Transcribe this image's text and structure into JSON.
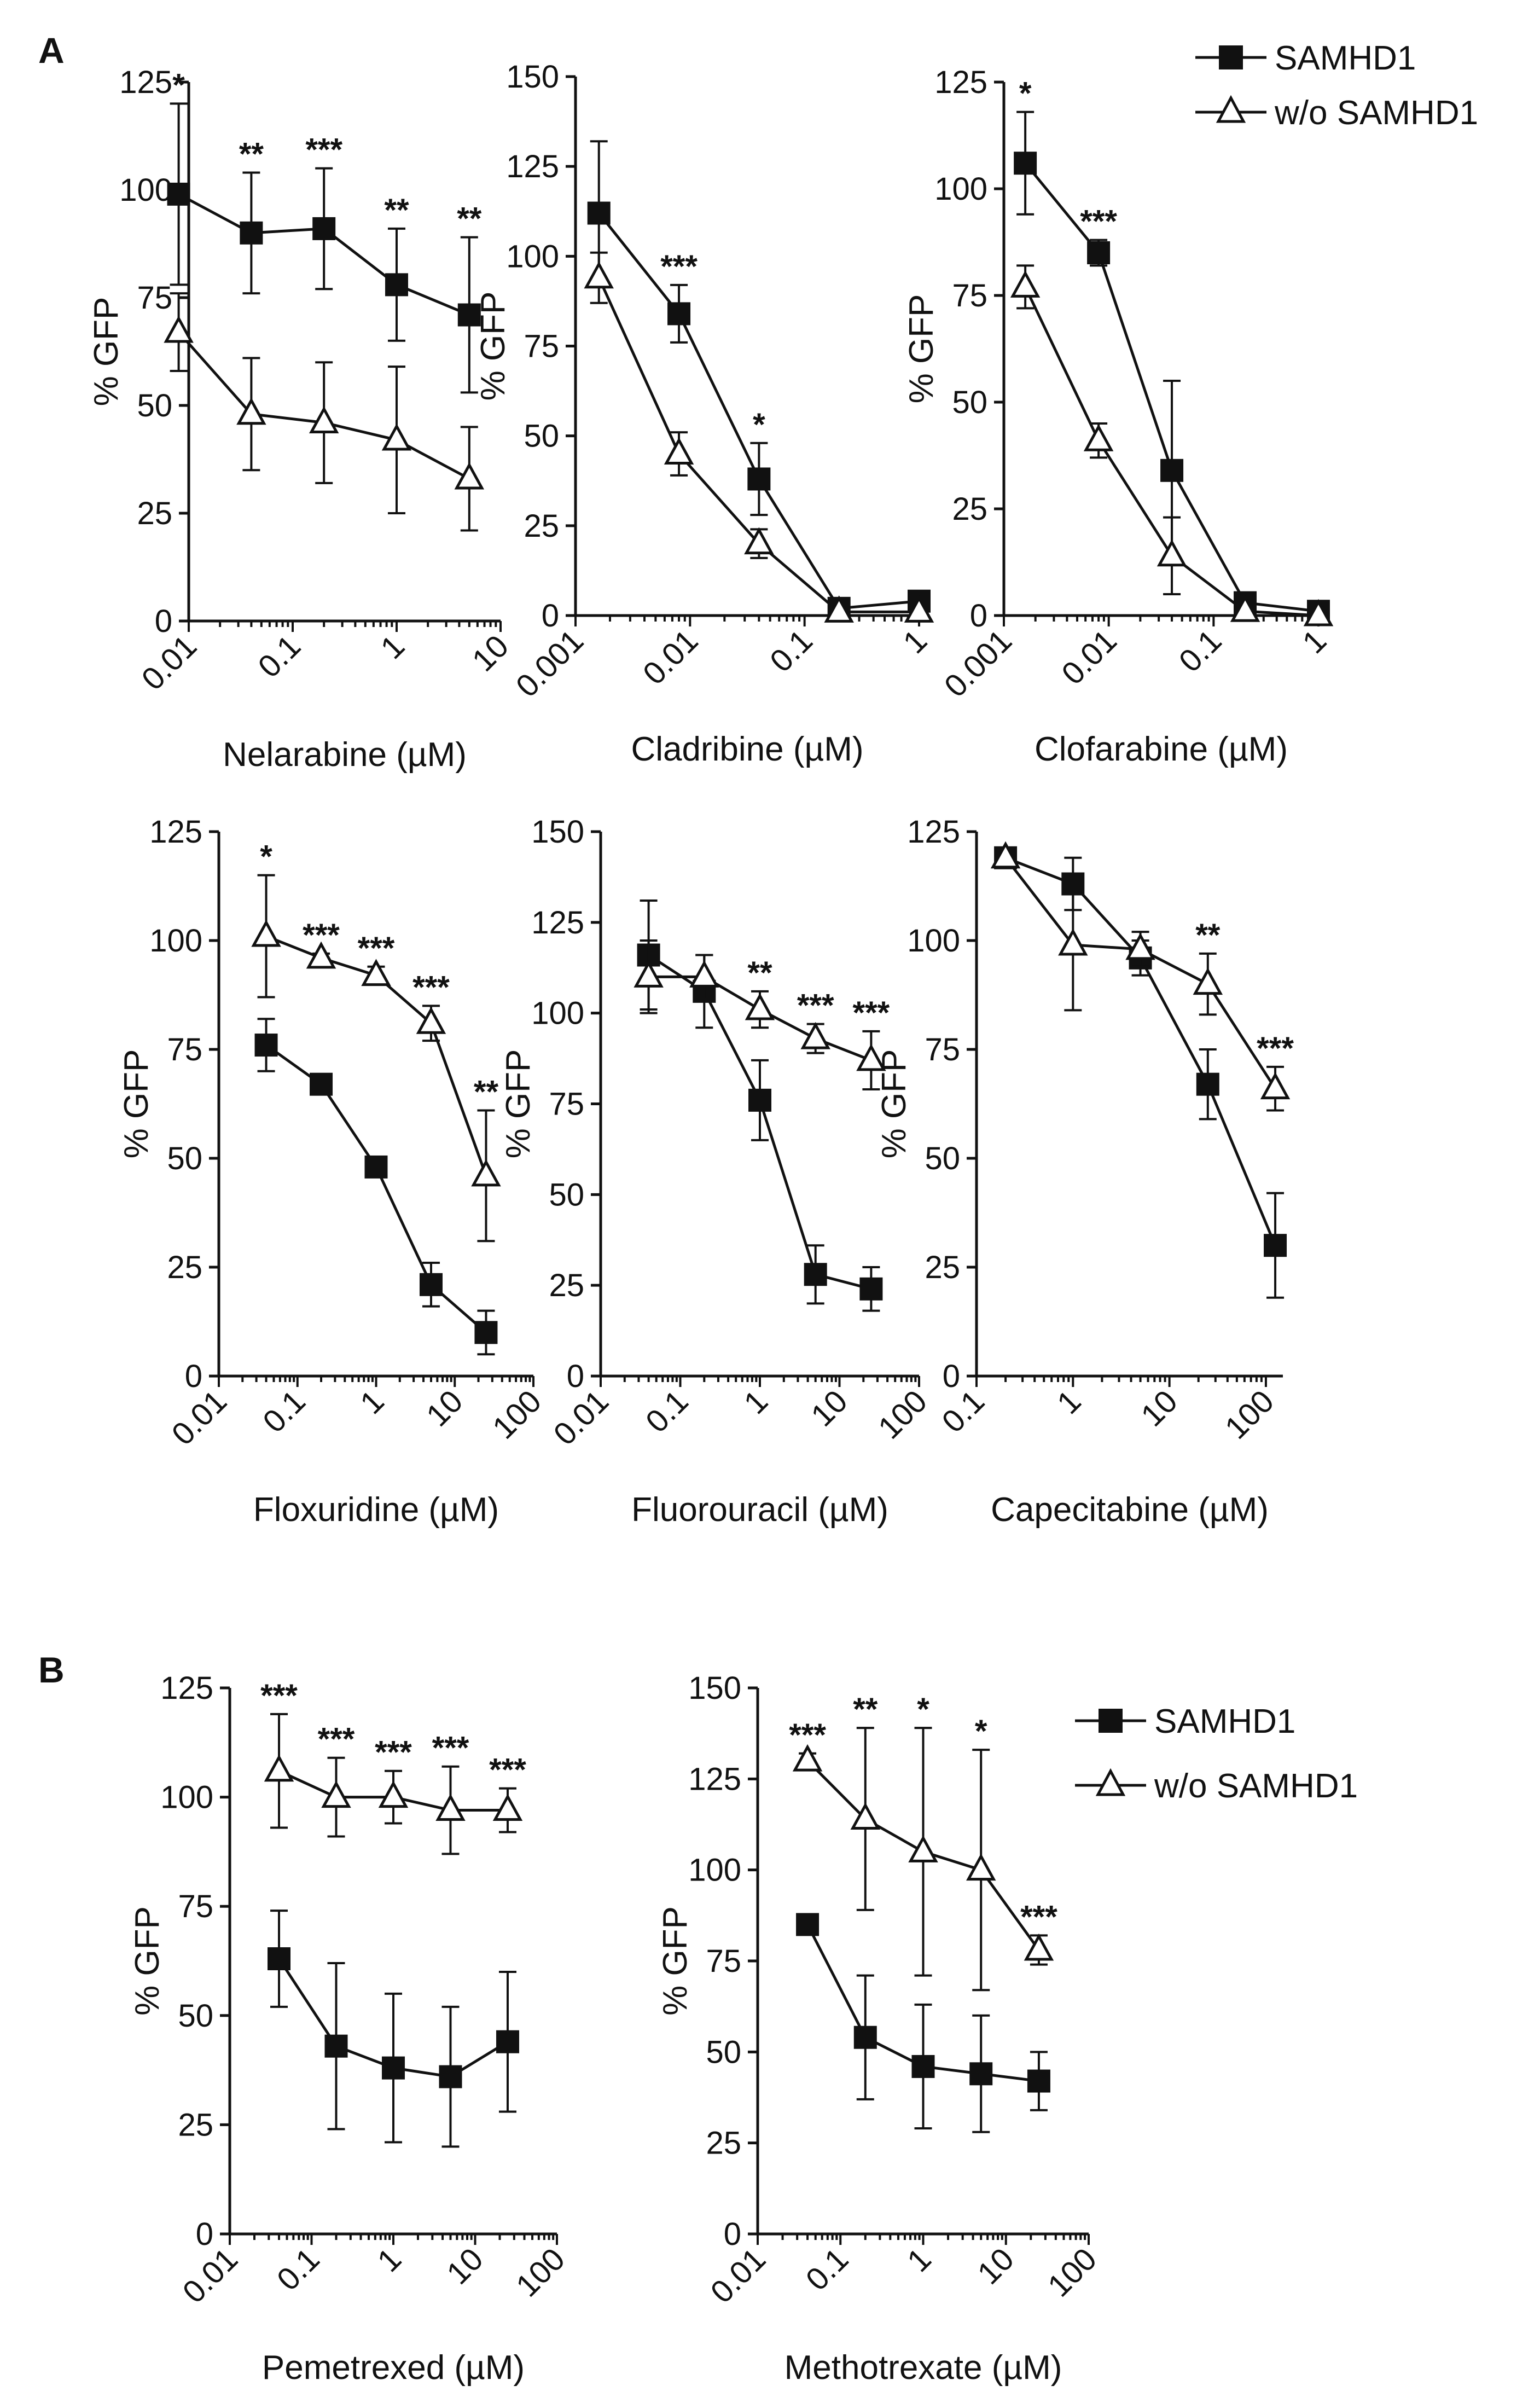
{
  "panel_labels": [
    "A",
    "B"
  ],
  "legends": [
    {
      "entries": [
        "SAMHD1",
        "w/o SAMHD1"
      ]
    },
    {
      "entries": [
        "SAMHD1",
        "w/o SAMHD1"
      ]
    }
  ],
  "chart_data": [
    {
      "type": "line",
      "xscale": "log",
      "xlabel": "Nelarabine (µM)",
      "ylabel": "% GFP",
      "xlim": [
        0.01,
        10
      ],
      "ylim": [
        0,
        125
      ],
      "xticks": [
        "0.01",
        "0.1",
        "1",
        "10"
      ],
      "yticks": [
        "0",
        "25",
        "50",
        "75",
        "100",
        "125"
      ],
      "x": [
        0.008,
        0.04,
        0.2,
        1,
        5
      ],
      "series": [
        {
          "name": "SAMHD1",
          "marker": "square",
          "values": [
            99,
            90,
            91,
            78,
            71
          ],
          "errors": [
            21,
            14,
            14,
            13,
            18
          ]
        },
        {
          "name": "w/o SAMHD1",
          "marker": "triangle",
          "values": [
            67,
            48,
            46,
            42,
            33
          ],
          "errors": [
            9,
            13,
            14,
            17,
            12
          ]
        }
      ],
      "annotations": [
        "*",
        "**",
        "***",
        "**",
        "**"
      ]
    },
    {
      "type": "line",
      "xscale": "log",
      "xlabel": "Cladribine (µM)",
      "ylabel": "% GFP",
      "xlim": [
        0.001,
        1
      ],
      "ylim": [
        0,
        150
      ],
      "xticks": [
        "0.001",
        "0.01",
        "0.1",
        "1"
      ],
      "yticks": [
        "0",
        "25",
        "50",
        "75",
        "100",
        "125",
        "150"
      ],
      "x": [
        0.0016,
        0.008,
        0.04,
        0.2,
        1
      ],
      "series": [
        {
          "name": "SAMHD1",
          "marker": "square",
          "values": [
            112,
            84,
            38,
            2,
            4
          ],
          "errors": [
            20,
            8,
            10,
            1,
            2
          ]
        },
        {
          "name": "w/o SAMHD1",
          "marker": "triangle",
          "values": [
            94,
            45,
            20,
            1,
            1
          ],
          "errors": [
            7,
            6,
            4,
            1,
            1
          ]
        }
      ],
      "annotations": [
        "",
        "***",
        "*",
        "",
        ""
      ]
    },
    {
      "type": "line",
      "xscale": "log",
      "xlabel": "Clofarabine (µM)",
      "ylabel": "% GFP",
      "xlim": [
        0.001,
        1
      ],
      "ylim": [
        0,
        125
      ],
      "xticks": [
        "0.001",
        "0.01",
        "0.1",
        "1"
      ],
      "yticks": [
        "0",
        "25",
        "50",
        "75",
        "100",
        "125"
      ],
      "x": [
        0.0016,
        0.008,
        0.04,
        0.2,
        1
      ],
      "series": [
        {
          "name": "SAMHD1",
          "marker": "square",
          "values": [
            106,
            85,
            34,
            3,
            1
          ],
          "errors": [
            12,
            3,
            21,
            1,
            1
          ]
        },
        {
          "name": "w/o SAMHD1",
          "marker": "triangle",
          "values": [
            77,
            41,
            14,
            1,
            0
          ],
          "errors": [
            5,
            4,
            9,
            1,
            1
          ]
        }
      ],
      "annotations": [
        "*",
        "***",
        "",
        "",
        ""
      ]
    },
    {
      "type": "line",
      "xscale": "log",
      "xlabel": "Floxuridine (µM)",
      "ylabel": "% GFP",
      "xlim": [
        0.01,
        100
      ],
      "ylim": [
        0,
        125
      ],
      "xticks": [
        "0.01",
        "0.1",
        "1",
        "10",
        "100"
      ],
      "yticks": [
        "0",
        "25",
        "50",
        "75",
        "100",
        "125"
      ],
      "x": [
        0.04,
        0.2,
        1,
        5,
        25
      ],
      "series": [
        {
          "name": "SAMHD1",
          "marker": "square",
          "values": [
            76,
            67,
            48,
            21,
            10
          ],
          "errors": [
            6,
            1,
            1,
            5,
            5
          ]
        },
        {
          "name": "w/o SAMHD1",
          "marker": "triangle",
          "values": [
            101,
            96,
            92,
            81,
            46
          ],
          "errors": [
            14,
            1,
            2,
            4,
            15
          ]
        }
      ],
      "annotations": [
        "*",
        "***",
        "***",
        "***",
        "**"
      ]
    },
    {
      "type": "line",
      "xscale": "log",
      "xlabel": "Fluorouracil (µM)",
      "ylabel": "% GFP",
      "xlim": [
        0.01,
        100
      ],
      "ylim": [
        0,
        150
      ],
      "xticks": [
        "0.01",
        "0.1",
        "1",
        "10",
        "100"
      ],
      "yticks": [
        "0",
        "25",
        "50",
        "75",
        "100",
        "125",
        "150"
      ],
      "x": [
        0.04,
        0.2,
        1,
        5,
        25
      ],
      "series": [
        {
          "name": "SAMHD1",
          "marker": "square",
          "values": [
            116,
            106,
            76,
            28,
            24
          ],
          "errors": [
            15,
            10,
            11,
            8,
            6
          ]
        },
        {
          "name": "w/o SAMHD1",
          "marker": "triangle",
          "values": [
            110,
            110,
            101,
            93,
            87
          ],
          "errors": [
            10,
            6,
            5,
            4,
            8
          ]
        }
      ],
      "annotations": [
        "",
        "",
        "**",
        "***",
        "***"
      ]
    },
    {
      "type": "line",
      "xscale": "log",
      "xlabel": "Capecitabine (µM)",
      "ylabel": "% GFP",
      "xlim": [
        0.1,
        150
      ],
      "ylim": [
        0,
        125
      ],
      "xticks": [
        "0.1",
        "1",
        "10",
        "100"
      ],
      "yticks": [
        "0",
        "25",
        "50",
        "75",
        "100",
        "125"
      ],
      "x": [
        0.2,
        1,
        5,
        25,
        125
      ],
      "series": [
        {
          "name": "SAMHD1",
          "marker": "square",
          "values": [
            119,
            113,
            96,
            67,
            30
          ],
          "errors": [
            2,
            6,
            4,
            8,
            12
          ]
        },
        {
          "name": "w/o SAMHD1",
          "marker": "triangle",
          "values": [
            119,
            99,
            98,
            90,
            66
          ],
          "errors": [
            2,
            15,
            4,
            7,
            5
          ]
        }
      ],
      "annotations": [
        "",
        "",
        "",
        "**",
        "***"
      ]
    },
    {
      "type": "line",
      "xscale": "log",
      "xlabel": "Pemetrexed (µM)",
      "ylabel": "% GFP",
      "xlim": [
        0.01,
        100
      ],
      "ylim": [
        0,
        125
      ],
      "xticks": [
        "0.01",
        "0.1",
        "1",
        "10",
        "100"
      ],
      "yticks": [
        "0",
        "25",
        "50",
        "75",
        "100",
        "125"
      ],
      "x": [
        0.04,
        0.2,
        1,
        5,
        25
      ],
      "series": [
        {
          "name": "SAMHD1",
          "marker": "square",
          "values": [
            63,
            43,
            38,
            36,
            44
          ],
          "errors": [
            11,
            19,
            17,
            16,
            16
          ]
        },
        {
          "name": "w/o SAMHD1",
          "marker": "triangle",
          "values": [
            106,
            100,
            100,
            97,
            97
          ],
          "errors": [
            13,
            9,
            6,
            10,
            5
          ]
        }
      ],
      "annotations": [
        "***",
        "***",
        "***",
        "***",
        "***"
      ]
    },
    {
      "type": "line",
      "xscale": "log",
      "xlabel": "Methotrexate (µM)",
      "ylabel": "% GFP",
      "xlim": [
        0.01,
        100
      ],
      "ylim": [
        0,
        150
      ],
      "xticks": [
        "0.01",
        "0.1",
        "1",
        "10",
        "100"
      ],
      "yticks": [
        "0",
        "25",
        "50",
        "75",
        "100",
        "125",
        "150"
      ],
      "x": [
        0.04,
        0.2,
        1,
        5,
        25
      ],
      "series": [
        {
          "name": "SAMHD1",
          "marker": "square",
          "values": [
            85,
            54,
            46,
            44,
            42
          ],
          "errors": [
            1,
            17,
            17,
            16,
            8
          ]
        },
        {
          "name": "w/o SAMHD1",
          "marker": "triangle",
          "values": [
            130,
            114,
            105,
            100,
            78
          ],
          "errors": [
            2,
            25,
            34,
            33,
            4
          ]
        }
      ],
      "annotations": [
        "***",
        "**",
        "*",
        "*",
        "***"
      ]
    }
  ]
}
